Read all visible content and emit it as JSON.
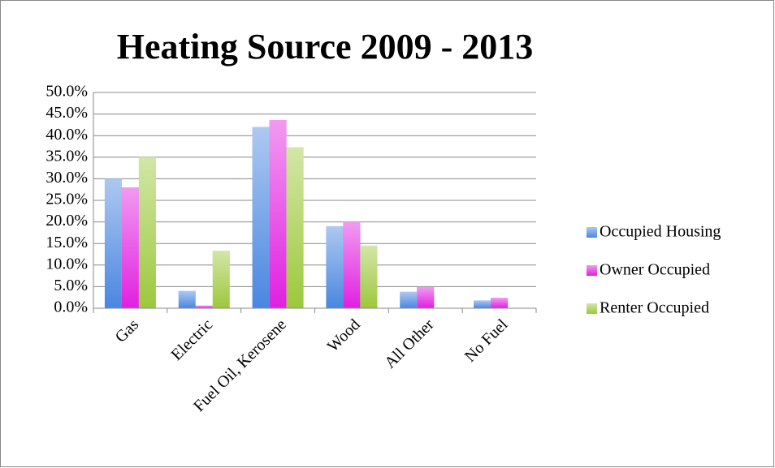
{
  "chart_data": {
    "type": "bar",
    "title": "Heating Source 2009 - 2013",
    "categories": [
      "Gas",
      "Electric",
      "Fuel Oil, Kerosene",
      "Wood",
      "All Other",
      "No Fuel"
    ],
    "series": [
      {
        "name": "Occupied Housing",
        "color": "#4a86e0",
        "values": [
          30.0,
          4.0,
          42.0,
          19.0,
          3.8,
          1.8
        ]
      },
      {
        "name": "Owner Occupied",
        "color": "#e020e0",
        "values": [
          28.0,
          0.6,
          43.6,
          20.0,
          4.9,
          2.4
        ]
      },
      {
        "name": "Renter Occupied",
        "color": "#9cc83c",
        "values": [
          35.0,
          13.3,
          37.3,
          14.5,
          0.0,
          0.0
        ]
      }
    ],
    "ylim": [
      0,
      50
    ],
    "yticks": [
      {
        "value": 0,
        "label": "0.0%"
      },
      {
        "value": 5,
        "label": "5.0%"
      },
      {
        "value": 10,
        "label": "10.0%"
      },
      {
        "value": 15,
        "label": "15.0%"
      },
      {
        "value": 20,
        "label": "20.0%"
      },
      {
        "value": 25,
        "label": "25.0%"
      },
      {
        "value": 30,
        "label": "30.0%"
      },
      {
        "value": 35,
        "label": "35.0%"
      },
      {
        "value": 40,
        "label": "40.0%"
      },
      {
        "value": 45,
        "label": "45.0%"
      },
      {
        "value": 50,
        "label": "50.0%"
      }
    ],
    "grid": true,
    "legend": "right"
  }
}
